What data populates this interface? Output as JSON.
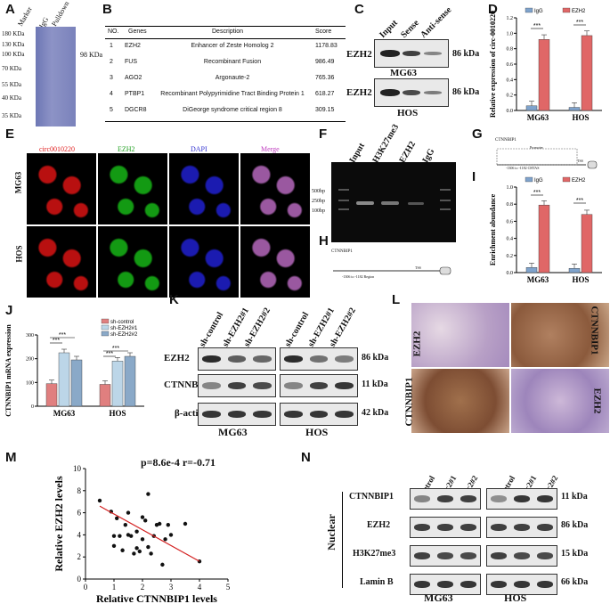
{
  "panels": {
    "A": {
      "label": "A",
      "lanes": [
        "Marker",
        "IgG",
        "Pulldown"
      ],
      "markers": [
        "180 KDa",
        "130 KDa",
        "100 KDa",
        "70 KDa",
        "55 KDa",
        "40 KDa",
        "35 KDa"
      ],
      "band_label": "98 KDa"
    },
    "B": {
      "label": "B",
      "headers": [
        "NO.",
        "Genes",
        "Description",
        "Score"
      ],
      "rows": [
        [
          "1",
          "EZH2",
          "Enhancer of Zeste Homolog 2",
          "1178.83"
        ],
        [
          "2",
          "FUS",
          "Recombinant Fusion",
          "986.49"
        ],
        [
          "3",
          "AGO2",
          "Argonaute-2",
          "765.36"
        ],
        [
          "4",
          "PTBP1",
          "Recombinant Polypyrimidine Tract Binding Protein 1",
          "618.27"
        ],
        [
          "5",
          "DGCR8",
          "DiGeorge syndrome critical region 8",
          "309.15"
        ]
      ]
    },
    "C": {
      "label": "C",
      "lanes": [
        "Input",
        "Sense",
        "Anti-sense"
      ],
      "protein": "EZH2",
      "size": "86 kDa",
      "cells": [
        "MG63",
        "HOS"
      ]
    },
    "D": {
      "label": "D",
      "legend": [
        "IgG",
        "EZH2"
      ],
      "ylabel": "Relative expression of circ-0010220",
      "sig": [
        "***",
        "***"
      ]
    },
    "E": {
      "label": "E",
      "stains": [
        "circ0010220",
        "EZH2",
        "DAPI",
        "Merge"
      ],
      "rows": [
        "MG63",
        "HOS"
      ]
    },
    "F": {
      "label": "F",
      "lanes": [
        "Input",
        "H3K27me3",
        "EZH2",
        "IgG"
      ],
      "ladder": [
        "500bp",
        "250bp",
        "100bp"
      ]
    },
    "G": {
      "label": "G",
      "gene": "CTNNBIP1",
      "promoter": "Promoter",
      "tss": "TSS",
      "region": "-1306 to -1182 CHTAS"
    },
    "H": {
      "label": "H",
      "gene": "CTNNBIP1",
      "tss": "TSS",
      "region": "-1306 to -1182 Region"
    },
    "I": {
      "label": "I",
      "legend": [
        "IgG",
        "EZH2"
      ],
      "ylabel": "Enrichment abundance",
      "sig": [
        "***",
        "***"
      ]
    },
    "J": {
      "label": "J",
      "legend": [
        "sh-control",
        "sh-EZH2#1",
        "sh-EZH2#2"
      ],
      "ylabel": "CTNNBIP1 mRNA expression",
      "sig": [
        "***",
        "***",
        "***",
        "***"
      ]
    },
    "K": {
      "label": "K",
      "lanes": [
        "sh-control",
        "sh-EZH2#1",
        "sh-EZH2#2"
      ],
      "proteins": [
        "EZH2",
        "CTNNBIP1",
        "β-actin"
      ],
      "sizes": [
        "86 kDa",
        "11 kDa",
        "42 kDa"
      ],
      "cells": [
        "MG63",
        "HOS"
      ]
    },
    "L": {
      "label": "L",
      "stains": [
        "EZH2",
        "CTNNBIP1",
        "CTNNBIP1",
        "EZH2"
      ]
    },
    "M": {
      "label": "M",
      "stat": "p=8.6e-4 r=-0.71",
      "xlabel": "Relative CTNNBIP1 levels",
      "ylabel": "Relative EZH2 levels"
    },
    "N": {
      "label": "N",
      "lanes": [
        "sh-control",
        "sh-circ2#1",
        "sh-circ2#2"
      ],
      "side": "Nuclear",
      "proteins": [
        "CTNNBIP1",
        "EZH2",
        "H3K27me3",
        "Lamin B"
      ],
      "sizes": [
        "11 kDa",
        "86 kDa",
        "15 kDa",
        "66 kDa"
      ],
      "cells": [
        "MG63",
        "HOS"
      ]
    }
  },
  "chart_data": [
    {
      "id": "D",
      "type": "bar",
      "categories": [
        "MG63",
        "HOS"
      ],
      "series": [
        {
          "name": "IgG",
          "values": [
            0.06,
            0.04
          ],
          "color": "#7fa3cc"
        },
        {
          "name": "EZH2",
          "values": [
            0.92,
            0.97
          ],
          "color": "#e06767"
        }
      ],
      "ylabel": "Relative expression of circ-0010220",
      "ylim": [
        0,
        1.2
      ],
      "yticks": [
        0.0,
        0.2,
        0.4,
        0.6,
        0.8,
        1.0,
        1.2
      ]
    },
    {
      "id": "I",
      "type": "bar",
      "categories": [
        "MG63",
        "HOS"
      ],
      "series": [
        {
          "name": "IgG",
          "values": [
            0.06,
            0.05
          ],
          "color": "#7fa3cc"
        },
        {
          "name": "EZH2",
          "values": [
            0.79,
            0.68
          ],
          "color": "#e06767"
        }
      ],
      "ylabel": "Enrichment abundance",
      "ylim": [
        0,
        1.0
      ],
      "yticks": [
        0.0,
        0.2,
        0.4,
        0.6,
        0.8,
        1.0
      ]
    },
    {
      "id": "J",
      "type": "bar",
      "categories": [
        "MG63",
        "HOS"
      ],
      "series": [
        {
          "name": "sh-control",
          "values": [
            95,
            92
          ],
          "color": "#e07f7f"
        },
        {
          "name": "sh-EZH2#1",
          "values": [
            225,
            190
          ],
          "color": "#bcd6e8"
        },
        {
          "name": "sh-EZH2#2",
          "values": [
            195,
            210
          ],
          "color": "#8aa9c8"
        }
      ],
      "ylabel": "CTNNBIP1 mRNA expression",
      "ylim": [
        0,
        300
      ],
      "yticks": [
        0,
        100,
        200,
        300
      ]
    },
    {
      "id": "M",
      "type": "scatter",
      "xlabel": "Relative CTNNBIP1 levels",
      "ylabel": "Relative EZH2 levels",
      "xlim": [
        0,
        5
      ],
      "ylim": [
        0,
        10
      ],
      "xticks": [
        0,
        1,
        2,
        3,
        4,
        5
      ],
      "yticks": [
        0,
        2,
        4,
        6,
        8,
        10
      ],
      "x": [
        0.5,
        0.9,
        1.0,
        1.1,
        1.2,
        1.3,
        1.4,
        1.5,
        1.5,
        1.6,
        1.7,
        1.8,
        1.8,
        1.9,
        2.0,
        2.0,
        2.1,
        2.2,
        2.3,
        2.4,
        2.5,
        2.6,
        2.7,
        2.8,
        2.9,
        3.0,
        3.5,
        4.0,
        1.0,
        2.2
      ],
      "y": [
        7.1,
        6.1,
        3.9,
        5.5,
        3.9,
        2.6,
        4.9,
        4.0,
        6.0,
        3.9,
        2.3,
        4.3,
        2.8,
        2.5,
        5.6,
        3.6,
        5.3,
        2.9,
        2.3,
        3.9,
        4.9,
        5.0,
        1.3,
        3.6,
        4.9,
        4.0,
        5.0,
        1.6,
        3.0,
        7.7
      ],
      "fit": {
        "x": [
          0.5,
          4.0
        ],
        "y": [
          6.6,
          1.6
        ]
      }
    }
  ]
}
